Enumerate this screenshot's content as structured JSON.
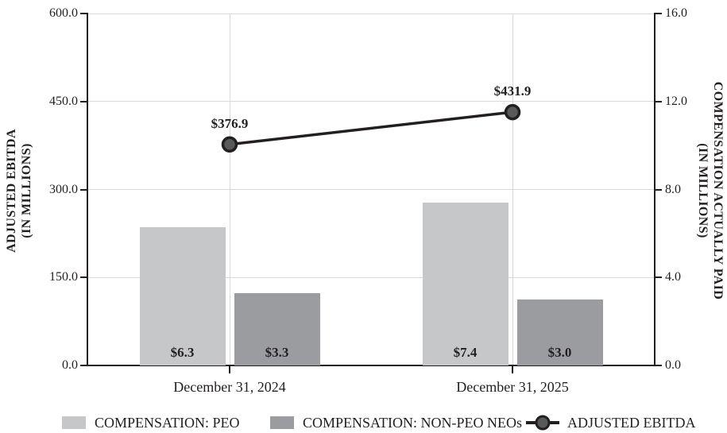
{
  "chart_data": {
    "type": "bar+line",
    "categories": [
      "December 31, 2024",
      "December 31, 2025"
    ],
    "left_axis": {
      "title_line1": "ADJUSTED EBITDA",
      "title_line2": "(IN MILLIONS)",
      "min": 0,
      "max": 600,
      "tick_values": [
        0,
        150,
        300,
        450,
        600
      ],
      "tick_labels": [
        "0.0",
        "150.0",
        "300.0",
        "450.0",
        "600.0"
      ]
    },
    "right_axis": {
      "title_line1": "COMPENSATION ACTUALLY PAID",
      "title_line2": "(IN MILLIONS)",
      "min": 0,
      "max": 16,
      "tick_values": [
        0,
        4,
        8,
        12,
        16
      ],
      "tick_labels": [
        "0.0",
        "4.0",
        "8.0",
        "12.0",
        "16.0"
      ]
    },
    "bar_series": [
      {
        "name": "COMPENSATION: PEO",
        "axis": "right",
        "values": [
          6.3,
          7.4
        ],
        "labels": [
          "$6.3",
          "$7.4"
        ],
        "color": "#c6c7c9"
      },
      {
        "name": "COMPENSATION: NON-PEO NEOs",
        "axis": "right",
        "values": [
          3.3,
          3.0
        ],
        "labels": [
          "$3.3",
          "$3.0"
        ],
        "color": "#9a9ca0"
      }
    ],
    "line_series": {
      "name": "ADJUSTED EBITDA",
      "axis": "left",
      "values": [
        376.9,
        431.9
      ],
      "labels": [
        "$376.9",
        "$431.9"
      ],
      "line_color": "#231f20",
      "marker_fill": "#58595b"
    },
    "grid": {
      "color": "#d9d9d9",
      "horizontal": true,
      "vertical": true
    },
    "legend_position": "bottom"
  },
  "styles": {
    "text_color": "#231f20",
    "axis_color": "#231f20",
    "background": "#ffffff"
  }
}
